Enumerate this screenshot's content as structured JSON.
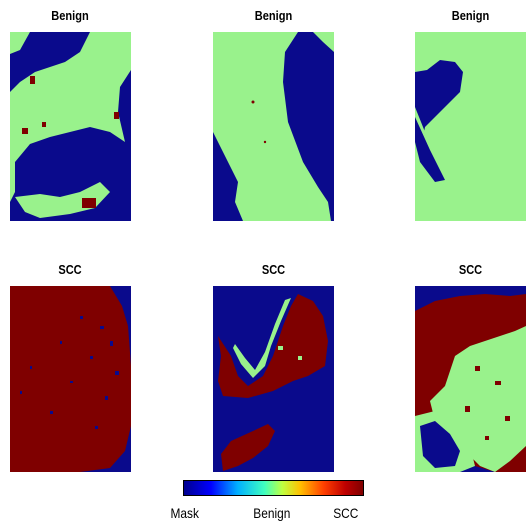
{
  "panels": {
    "top": [
      {
        "title": "Benign"
      },
      {
        "title": "Benign"
      },
      {
        "title": "Benign"
      }
    ],
    "bottom": [
      {
        "title": "SCC"
      },
      {
        "title": "SCC"
      },
      {
        "title": "SCC"
      }
    ]
  },
  "colorbar": {
    "labels": [
      "Mask",
      "Benign",
      "SCC"
    ]
  },
  "colors": {
    "mask": "#0a0a8c",
    "benign": "#99f28c",
    "scc": "#7f0000"
  }
}
